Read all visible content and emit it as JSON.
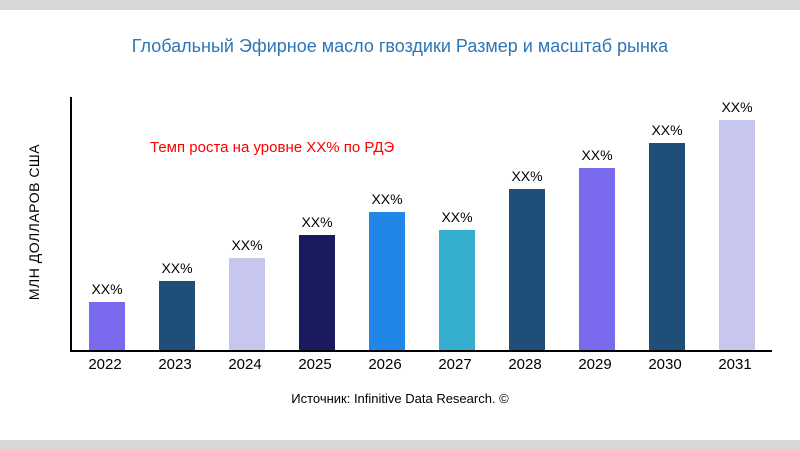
{
  "title": "Глобальный Эфирное масло гвоздики Размер и масштаб рынка",
  "title_color": "#2e75b6",
  "y_axis_label": "МЛН ДОЛЛАРОВ США",
  "annotation": {
    "text": "Темп роста на уровне XX% по РДЭ",
    "color": "#ff0000"
  },
  "source": "Источник: Infinitive Data Research. ©",
  "chart_data": {
    "type": "bar",
    "title": "Глобальный Эфирное масло гвоздики Размер и масштаб рынка",
    "xlabel": "",
    "ylabel": "МЛН ДОЛЛАРОВ США",
    "categories": [
      "2022",
      "2023",
      "2024",
      "2025",
      "2026",
      "2027",
      "2028",
      "2029",
      "2030",
      "2031"
    ],
    "values": [
      21,
      30,
      40,
      50,
      60,
      52,
      70,
      79,
      90,
      100
    ],
    "bar_labels": [
      "XX%",
      "XX%",
      "XX%",
      "XX%",
      "XX%",
      "XX%",
      "XX%",
      "XX%",
      "XX%",
      "XX%"
    ],
    "bar_colors": [
      "#7a6bee",
      "#1f4e79",
      "#c7c6ee",
      "#1a1a5e",
      "#2086e8",
      "#35aed0",
      "#1f4e79",
      "#7a6bee",
      "#1f4e79",
      "#c7c6ee"
    ],
    "ylim": [
      0,
      110
    ],
    "grid": false,
    "legend": false,
    "annotation": "Темп роста на уровне XX% по РДЭ"
  }
}
